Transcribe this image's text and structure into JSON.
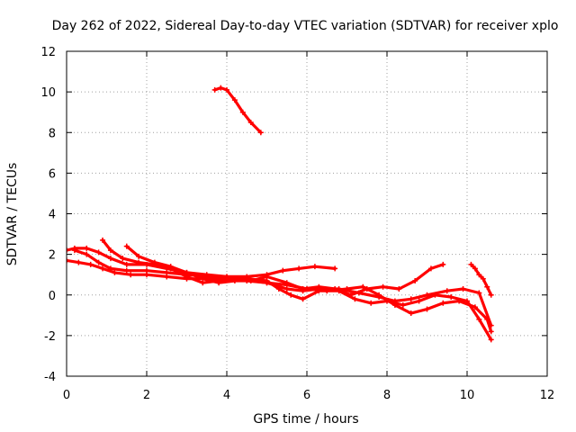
{
  "chart_data": {
    "type": "line",
    "title": "Day 262 of 2022, Sidereal Day-to-day VTEC variation (SDTVAR) for receiver xplo",
    "xlabel": "GPS time / hours",
    "ylabel": "SDTVAR / TECUs",
    "xlim": [
      0,
      12
    ],
    "ylim": [
      -4,
      12
    ],
    "xticks": [
      0,
      2,
      4,
      6,
      8,
      10,
      12
    ],
    "yticks": [
      -4,
      -2,
      0,
      2,
      4,
      6,
      8,
      10,
      12
    ],
    "grid": true,
    "legend": "none",
    "color": "#ff0000",
    "series": [
      {
        "name": "trace-1",
        "x": [
          0.0,
          0.2,
          0.5,
          0.8,
          1.1,
          1.5,
          2.0,
          2.5,
          3.0,
          3.5,
          4.0,
          4.5,
          5.0,
          5.4,
          5.8,
          6.2,
          6.7
        ],
        "y": [
          2.2,
          2.3,
          2.3,
          2.1,
          1.8,
          1.5,
          1.5,
          1.3,
          1.1,
          1.0,
          0.9,
          0.9,
          1.0,
          1.2,
          1.3,
          1.4,
          1.3
        ]
      },
      {
        "name": "trace-2",
        "x": [
          0.0,
          0.3,
          0.6,
          0.9,
          1.2,
          1.6,
          2.0,
          2.5,
          3.0,
          3.5,
          4.0,
          4.5,
          5.0,
          5.5,
          5.9,
          6.3,
          6.8,
          7.3,
          7.8,
          8.2,
          8.6,
          9.0,
          9.5,
          9.9,
          10.3,
          10.6
        ],
        "y": [
          1.7,
          1.6,
          1.5,
          1.3,
          1.1,
          1.0,
          1.0,
          0.9,
          0.8,
          0.8,
          0.8,
          0.7,
          0.6,
          0.3,
          0.2,
          0.3,
          0.3,
          0.1,
          -0.1,
          -0.3,
          -0.2,
          0.0,
          0.2,
          0.3,
          0.1,
          -1.5
        ]
      },
      {
        "name": "trace-3",
        "x": [
          0.2,
          0.5,
          0.8,
          1.1,
          1.5,
          2.0,
          2.5,
          3.0,
          3.5,
          4.0,
          4.5,
          5.0,
          5.3,
          5.6,
          5.9,
          6.3,
          6.8,
          7.2,
          7.6,
          8.0,
          8.4,
          8.8,
          9.2,
          9.6,
          10.0,
          10.3,
          10.6
        ],
        "y": [
          2.2,
          2.0,
          1.6,
          1.3,
          1.2,
          1.2,
          1.1,
          1.0,
          0.9,
          0.9,
          0.8,
          0.7,
          0.3,
          0.0,
          -0.2,
          0.2,
          0.2,
          -0.2,
          -0.4,
          -0.3,
          -0.5,
          -0.3,
          0.0,
          -0.1,
          -0.3,
          -1.2,
          -2.2
        ]
      },
      {
        "name": "trace-4",
        "x": [
          0.9,
          1.1,
          1.4,
          1.8,
          2.2,
          2.6,
          3.0,
          3.4,
          3.8,
          4.2,
          4.6,
          5.0,
          5.5,
          5.9,
          6.3,
          6.7,
          7.1,
          7.5,
          7.9,
          8.3,
          8.7,
          9.1,
          9.4
        ],
        "y": [
          2.7,
          2.2,
          1.8,
          1.6,
          1.5,
          1.3,
          0.9,
          0.6,
          0.7,
          0.8,
          0.7,
          0.9,
          0.6,
          0.3,
          0.4,
          0.3,
          0.0,
          0.3,
          0.4,
          0.3,
          0.7,
          1.3,
          1.5
        ]
      },
      {
        "name": "trace-5",
        "x": [
          1.5,
          1.8,
          2.2,
          2.6,
          3.0,
          3.4,
          3.8,
          4.2,
          4.6,
          5.0,
          5.5,
          6.0,
          6.5,
          7.0,
          7.4,
          7.8,
          8.2,
          8.6,
          9.0,
          9.4,
          9.8,
          10.2,
          10.5,
          10.6
        ],
        "y": [
          2.4,
          1.9,
          1.6,
          1.4,
          1.1,
          0.8,
          0.6,
          0.7,
          0.7,
          0.6,
          0.5,
          0.3,
          0.2,
          0.3,
          0.4,
          0.0,
          -0.5,
          -0.9,
          -0.7,
          -0.4,
          -0.3,
          -0.6,
          -1.2,
          -1.8
        ]
      },
      {
        "name": "trace-6",
        "x": [
          3.7,
          3.85,
          4.0,
          4.2,
          4.4,
          4.6,
          4.85
        ],
        "y": [
          10.1,
          10.2,
          10.1,
          9.6,
          9.0,
          8.5,
          8.0
        ]
      },
      {
        "name": "trace-7",
        "x": [
          10.1,
          10.2,
          10.3,
          10.4,
          10.5,
          10.6
        ],
        "y": [
          1.5,
          1.3,
          1.0,
          0.8,
          0.4,
          0.0
        ]
      }
    ]
  }
}
